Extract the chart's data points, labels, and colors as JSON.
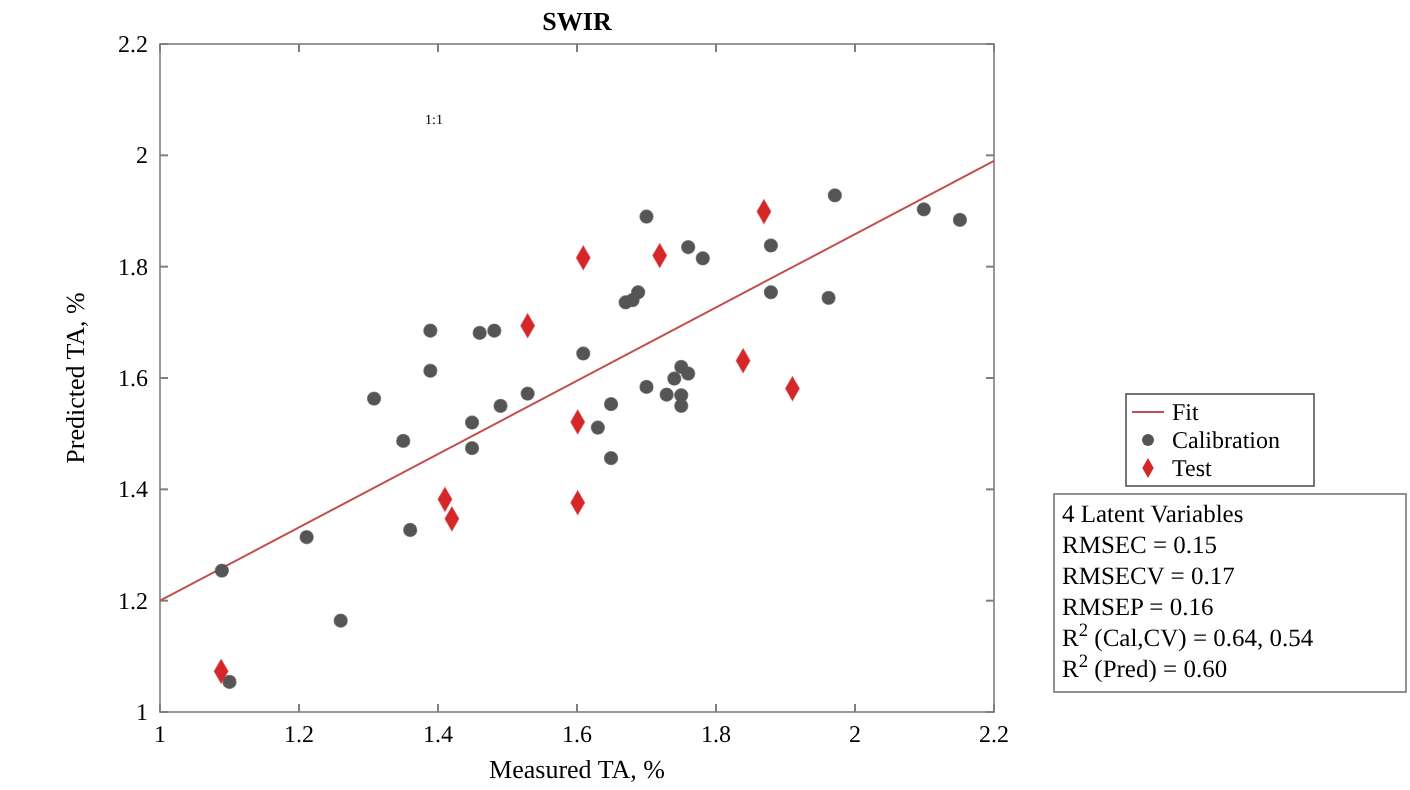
{
  "chart_data": {
    "type": "scatter",
    "title": "SWIR",
    "xlabel": "Measured TA, %",
    "ylabel": "Predicted TA, %",
    "xlim": [
      1,
      2.2
    ],
    "ylim": [
      1,
      2.2
    ],
    "xticks": [
      1,
      1.2,
      1.4,
      1.6,
      1.8,
      2,
      2.2
    ],
    "yticks": [
      1,
      1.2,
      1.4,
      1.6,
      1.8,
      2,
      2.2
    ],
    "grid": false,
    "legend": "right",
    "series": [
      {
        "name": "Fit",
        "type": "line",
        "color": "#c0504d",
        "marker": "none",
        "line_style": "solid",
        "x": [
          1,
          2.2
        ],
        "values": [
          1.2,
          1.99
        ]
      },
      {
        "name": "Calibration",
        "color": "#555555",
        "marker": "circle",
        "x": [
          1.7,
          1.76,
          1.781,
          1.67,
          1.68,
          1.688,
          1.389,
          1.46,
          1.481,
          1.389,
          1.609,
          1.308,
          1.529,
          1.49,
          1.449,
          1.35,
          1.449,
          1.649,
          1.63,
          1.649,
          1.7,
          1.729,
          1.74,
          1.75,
          1.76,
          1.75,
          1.75,
          1.211,
          1.36,
          1.089,
          1.26,
          1.1,
          1.971,
          2.099,
          2.151,
          1.879,
          1.879,
          1.962
        ],
        "values": [
          1.89,
          1.835,
          1.815,
          1.736,
          1.74,
          1.754,
          1.685,
          1.681,
          1.685,
          1.613,
          1.644,
          1.563,
          1.572,
          1.55,
          1.52,
          1.487,
          1.474,
          1.553,
          1.511,
          1.456,
          1.584,
          1.57,
          1.599,
          1.62,
          1.608,
          1.569,
          1.55,
          1.314,
          1.327,
          1.254,
          1.164,
          1.054,
          1.928,
          1.903,
          1.884,
          1.838,
          1.754,
          1.744
        ]
      },
      {
        "name": "Test",
        "color": "#d62728",
        "marker": "diamond",
        "x": [
          1.088,
          1.41,
          1.42,
          1.601,
          1.601,
          1.529,
          1.609,
          1.719,
          1.839,
          1.869,
          1.91
        ],
        "values": [
          1.073,
          1.382,
          1.347,
          1.376,
          1.521,
          1.694,
          1.816,
          1.82,
          1.631,
          1.899,
          1.581
        ]
      }
    ],
    "annotations": [
      "1:1",
      "4 Latent Variables\nRMSEC = 0.15\nRMSECV = 0.17\nRMSEP = 0.16\nR$^{2}$ (Cal,CV) = 0.64, 0.54\nR$^{2}$ (Pred) = 0.60"
    ]
  }
}
